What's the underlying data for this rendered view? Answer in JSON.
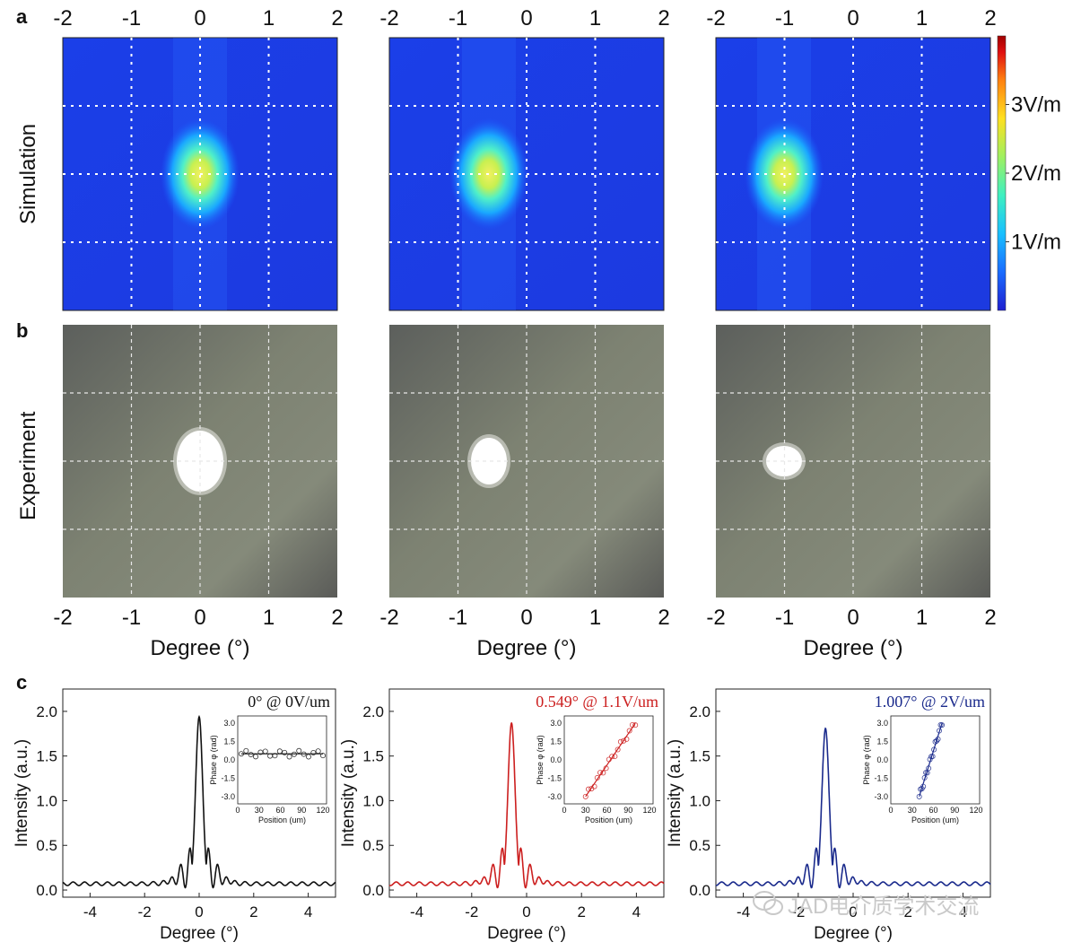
{
  "panels": {
    "a": "a",
    "b": "b",
    "c": "c"
  },
  "row_labels": {
    "simulation": "Simulation",
    "experiment": "Experiment"
  },
  "colorbar": {
    "ticks": [
      "3V/m",
      "2V/m",
      "1V/m"
    ],
    "tick_values": [
      3,
      2,
      1
    ],
    "range": [
      0,
      4
    ],
    "colors": [
      "#1f1fd0",
      "#1a6cff",
      "#19c0ff",
      "#3ff0c0",
      "#9ff060",
      "#ffe020",
      "#ff8010",
      "#e01010",
      "#a00000"
    ]
  },
  "maps": {
    "x_ticks": [
      "-2",
      "-1",
      "0",
      "1",
      "2"
    ],
    "x_range": [
      -2,
      2
    ],
    "xlabel": "Degree (°)",
    "beam_centers_deg": [
      0,
      -0.549,
      -1.007
    ],
    "grid_dashed": true
  },
  "watermark": "JAD电介质学术交流",
  "chart_data": [
    {
      "type": "line",
      "annotation": "0° @ 0V/um",
      "color": "#111111",
      "peak_x": 0,
      "peak_y": 1.94,
      "xlabel": "Degree (°)",
      "ylabel": "Intensity (a.u.)",
      "xlim": [
        -5,
        5
      ],
      "ylim": [
        -0.08,
        2.25
      ],
      "xticks": [
        "-4",
        "-2",
        "0",
        "2",
        "4"
      ],
      "yticks": [
        "0.0",
        "0.5",
        "1.0",
        "1.5",
        "2.0"
      ],
      "inset": {
        "type": "scatter",
        "xlabel": "Position (um)",
        "ylabel": "Phase φ (rad)",
        "xlim": [
          0,
          125
        ],
        "ylim": [
          -3.6,
          3.6
        ],
        "xticks": [
          "0",
          "30",
          "60",
          "90",
          "120"
        ],
        "yticks": [
          "3.0",
          "1.5",
          "0.0",
          "-1.5",
          "-3.0"
        ],
        "fit_x": [
          5,
          120
        ],
        "fit_y": [
          0.5,
          0.5
        ]
      }
    },
    {
      "type": "line",
      "annotation": "0.549° @ 1.1V/um",
      "color": "#cc1f1f",
      "peak_x": -0.549,
      "peak_y": 1.87,
      "xlabel": "Degree (°)",
      "ylabel": "Intensity (a.u.)",
      "xlim": [
        -5,
        5
      ],
      "ylim": [
        -0.08,
        2.25
      ],
      "xticks": [
        "-4",
        "-2",
        "0",
        "2",
        "4"
      ],
      "yticks": [
        "0.0",
        "0.5",
        "1.0",
        "1.5",
        "2.0"
      ],
      "inset": {
        "type": "scatter",
        "xlabel": "Position (um)",
        "ylabel": "Phase φ (rad)",
        "xlim": [
          0,
          125
        ],
        "ylim": [
          -3.6,
          3.6
        ],
        "xticks": [
          "0",
          "30",
          "60",
          "90",
          "120"
        ],
        "yticks": [
          "3.0",
          "1.5",
          "0.0",
          "-1.5",
          "-3.0"
        ],
        "fit_x": [
          30,
          100
        ],
        "fit_y": [
          -3.0,
          3.0
        ]
      }
    },
    {
      "type": "line",
      "annotation": "1.007° @ 2V/um",
      "color": "#1a2a8c",
      "peak_x": -1.007,
      "peak_y": 1.81,
      "xlabel": "Degree (°)",
      "ylabel": "Intensity (a.u.)",
      "xlim": [
        -5,
        5
      ],
      "ylim": [
        -0.08,
        2.25
      ],
      "xticks": [
        "-4",
        "-2",
        "0",
        "2",
        "4"
      ],
      "yticks": [
        "0.0",
        "0.5",
        "1.0",
        "1.5",
        "2.0"
      ],
      "inset": {
        "type": "scatter",
        "xlabel": "Position (um)",
        "ylabel": "Phase φ (rad)",
        "xlim": [
          0,
          125
        ],
        "ylim": [
          -3.6,
          3.6
        ],
        "xticks": [
          "0",
          "30",
          "60",
          "90",
          "120"
        ],
        "yticks": [
          "3.0",
          "1.5",
          "0.0",
          "-1.5",
          "-3.0"
        ],
        "fit_x": [
          40,
          72
        ],
        "fit_y": [
          -3.0,
          3.0
        ]
      }
    }
  ]
}
